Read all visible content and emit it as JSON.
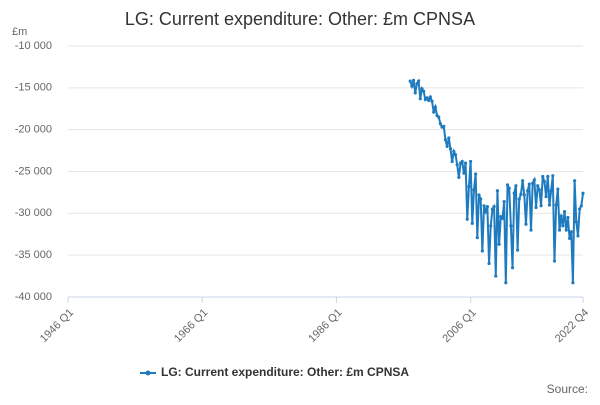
{
  "chart_data": {
    "type": "line",
    "title": "LG: Current expenditure: Other: £m CPNSA",
    "y_label": "£m",
    "source": "Source:",
    "categories": [
      "1946 Q1",
      null,
      null,
      null,
      null,
      null,
      null,
      null,
      null,
      null,
      null,
      null,
      null,
      null,
      null,
      null,
      null,
      null,
      null,
      null,
      null,
      null,
      null,
      null,
      null,
      null,
      null,
      null,
      null,
      null,
      null,
      null,
      null,
      null,
      null,
      null,
      null,
      null,
      null,
      null,
      null,
      null,
      null,
      null,
      null,
      null,
      null,
      null,
      null,
      null,
      null,
      null,
      null,
      null,
      null,
      null,
      null,
      null,
      null,
      null,
      null,
      null,
      null,
      null,
      null,
      null,
      null,
      null,
      null,
      null,
      null,
      null,
      null,
      null,
      null,
      null,
      null,
      null,
      null,
      null,
      "1966 Q1",
      null,
      null,
      null,
      null,
      null,
      null,
      null,
      null,
      null,
      null,
      null,
      null,
      null,
      null,
      null,
      null,
      null,
      null,
      null,
      null,
      null,
      null,
      null,
      null,
      null,
      null,
      null,
      null,
      null,
      null,
      null,
      null,
      null,
      null,
      null,
      null,
      null,
      null,
      null,
      null,
      null,
      null,
      null,
      null,
      null,
      null,
      null,
      null,
      null,
      null,
      null,
      null,
      null,
      null,
      null,
      null,
      null,
      null,
      null,
      null,
      null,
      null,
      null,
      null,
      null,
      null,
      null,
      null,
      null,
      null,
      null,
      null,
      null,
      null,
      null,
      null,
      null,
      null,
      null,
      "1986 Q1",
      null,
      null,
      null,
      null,
      null,
      null,
      null,
      null,
      null,
      null,
      null,
      null,
      null,
      null,
      null,
      null,
      null,
      null,
      null,
      null,
      null,
      null,
      null,
      null,
      null,
      null,
      null,
      null,
      null,
      null,
      null,
      null,
      null,
      null,
      null,
      null,
      null,
      null,
      null,
      null,
      null,
      null,
      null,
      null,
      null,
      null,
      null,
      null,
      null,
      null,
      null,
      null,
      null,
      null,
      null,
      null,
      null,
      null,
      null,
      null,
      null,
      null,
      null,
      null,
      null,
      null,
      null,
      null,
      null,
      null,
      null,
      null,
      null,
      null,
      null,
      null,
      null,
      null,
      null,
      "2006 Q1",
      null,
      null,
      null,
      null,
      null,
      null,
      null,
      null,
      null,
      null,
      null,
      null,
      null,
      null,
      null,
      null,
      null,
      null,
      null,
      null,
      null,
      null,
      null,
      null,
      null,
      null,
      null,
      null,
      null,
      null,
      null,
      null,
      null,
      null,
      null,
      null,
      null,
      null,
      null,
      null,
      null,
      null,
      null,
      null,
      null,
      null,
      null,
      null,
      null,
      null,
      null,
      null,
      null,
      null,
      null,
      null,
      null,
      null,
      null,
      null,
      null,
      null,
      null,
      null,
      null,
      null,
      "2022 Q4"
    ],
    "series": [
      {
        "name": "LG: Current expenditure: Other: £m CPNSA",
        "color": "#1f7bbf",
        "values": [
          null,
          null,
          null,
          null,
          null,
          null,
          null,
          null,
          null,
          null,
          null,
          null,
          null,
          null,
          null,
          null,
          null,
          null,
          null,
          null,
          null,
          null,
          null,
          null,
          null,
          null,
          null,
          null,
          null,
          null,
          null,
          null,
          null,
          null,
          null,
          null,
          null,
          null,
          null,
          null,
          null,
          null,
          null,
          null,
          null,
          null,
          null,
          null,
          null,
          null,
          null,
          null,
          null,
          null,
          null,
          null,
          null,
          null,
          null,
          null,
          null,
          null,
          null,
          null,
          null,
          null,
          null,
          null,
          null,
          null,
          null,
          null,
          null,
          null,
          null,
          null,
          null,
          null,
          null,
          null,
          null,
          null,
          null,
          null,
          null,
          null,
          null,
          null,
          null,
          null,
          null,
          null,
          null,
          null,
          null,
          null,
          null,
          null,
          null,
          null,
          null,
          null,
          null,
          null,
          null,
          null,
          null,
          null,
          null,
          null,
          null,
          null,
          null,
          null,
          null,
          null,
          null,
          null,
          null,
          null,
          null,
          null,
          null,
          null,
          null,
          null,
          null,
          null,
          null,
          null,
          null,
          null,
          null,
          null,
          null,
          null,
          null,
          null,
          null,
          null,
          null,
          null,
          null,
          null,
          null,
          null,
          null,
          null,
          null,
          null,
          null,
          null,
          null,
          null,
          null,
          null,
          null,
          null,
          null,
          null,
          null,
          null,
          null,
          null,
          null,
          null,
          null,
          null,
          null,
          null,
          null,
          null,
          null,
          null,
          null,
          null,
          null,
          null,
          null,
          null,
          null,
          null,
          null,
          null,
          null,
          null,
          null,
          null,
          null,
          null,
          null,
          null,
          null,
          null,
          null,
          null,
          null,
          null,
          null,
          null,
          null,
          null,
          null,
          null,
          -14200,
          -14800,
          -14100,
          -15600,
          -14500,
          -14200,
          -16300,
          -15100,
          -15400,
          -16400,
          -16200,
          -16500,
          -16100,
          -16600,
          -17900,
          -17300,
          -18300,
          -18500,
          -19300,
          -19700,
          -19600,
          -21200,
          -22000,
          -21000,
          -22300,
          -23800,
          -22600,
          -23000,
          -24200,
          -25700,
          -24000,
          -23800,
          -25200,
          -24000,
          -30700,
          -26800,
          -23800,
          -31200,
          -27200,
          -25300,
          -32900,
          -27800,
          -28300,
          -34500,
          -29100,
          -29800,
          -29200,
          -36000,
          -31500,
          -29500,
          -29200,
          -37500,
          -27300,
          -33700,
          -30400,
          -30600,
          -28600,
          -38300,
          -26600,
          -27000,
          -31500,
          -36500,
          -27600,
          -26700,
          -34400,
          -28300,
          -27700,
          -26100,
          -27800,
          -31300,
          -27300,
          -26500,
          -32000,
          -26400,
          -26000,
          -29300,
          -26700,
          -27200,
          -29100,
          -25600,
          -26200,
          -28000,
          -25600,
          -29000,
          -27300,
          -25500,
          -35700,
          -29000,
          -27100,
          -32000,
          -30300,
          -31500,
          -29800,
          -32000,
          -30500,
          -33000,
          -32200,
          -38300,
          -26100,
          -31000,
          -32700,
          -29500,
          -29100,
          -27600
        ]
      }
    ],
    "ylim": [
      -40000,
      -10000
    ],
    "yticks": [
      {
        "value": -40000,
        "label": "-40 000"
      },
      {
        "value": -35000,
        "label": "-35 000"
      },
      {
        "value": -30000,
        "label": "-30 000"
      },
      {
        "value": -25000,
        "label": "-25 000"
      },
      {
        "value": -20000,
        "label": "-20 000"
      },
      {
        "value": -15000,
        "label": "-15 000"
      },
      {
        "value": -10000,
        "label": "-10 000"
      }
    ],
    "grid": true,
    "legend": "bottom"
  }
}
